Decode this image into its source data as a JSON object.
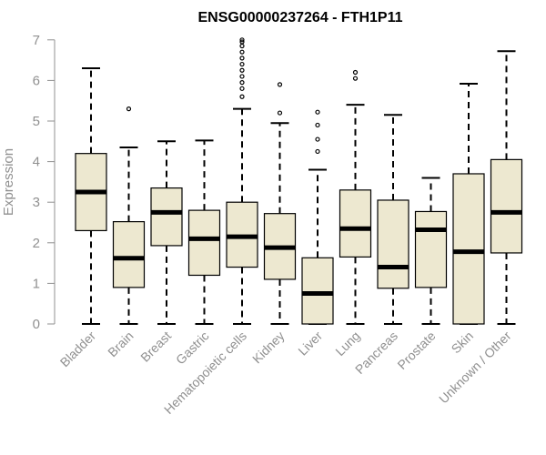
{
  "chart_data": {
    "type": "box",
    "title": "ENSG00000237264 - FTH1P11",
    "ylabel": "Expression",
    "xlabel": "",
    "ylim": [
      0,
      7
    ],
    "yticks": [
      0,
      1,
      2,
      3,
      4,
      5,
      6,
      7
    ],
    "grid": false,
    "legend": "none",
    "box_fill": "#ede8d0",
    "categories": [
      "Bladder",
      "Brain",
      "Breast",
      "Gastric",
      "Hematopoietic cells",
      "Kidney",
      "Liver",
      "Lung",
      "Pancreas",
      "Prostate",
      "Skin",
      "Unknown / Other"
    ],
    "boxes": [
      {
        "min": 0,
        "q1": 2.3,
        "median": 3.25,
        "q3": 4.2,
        "max": 6.3,
        "outliers": []
      },
      {
        "min": 0,
        "q1": 0.9,
        "median": 1.62,
        "q3": 2.52,
        "max": 4.35,
        "outliers": [
          5.3
        ]
      },
      {
        "min": 0,
        "q1": 1.93,
        "median": 2.75,
        "q3": 3.35,
        "max": 4.5,
        "outliers": []
      },
      {
        "min": 0,
        "q1": 1.2,
        "median": 2.1,
        "q3": 2.8,
        "max": 4.52,
        "outliers": []
      },
      {
        "min": 0,
        "q1": 1.4,
        "median": 2.15,
        "q3": 3.0,
        "max": 5.3,
        "outliers": [
          5.6,
          5.8,
          5.95,
          6.1,
          6.25,
          6.4,
          6.55,
          6.7,
          6.85,
          6.95,
          7.0
        ]
      },
      {
        "min": 0,
        "q1": 1.1,
        "median": 1.88,
        "q3": 2.72,
        "max": 4.95,
        "outliers": [
          5.2,
          5.9
        ]
      },
      {
        "min": 0,
        "q1": 0,
        "median": 0.75,
        "q3": 1.63,
        "max": 3.8,
        "outliers": [
          4.25,
          4.55,
          4.9,
          5.22
        ]
      },
      {
        "min": 0,
        "q1": 1.65,
        "median": 2.35,
        "q3": 3.3,
        "max": 5.4,
        "outliers": [
          6.05,
          6.2
        ]
      },
      {
        "min": 0,
        "q1": 0.88,
        "median": 1.4,
        "q3": 3.05,
        "max": 5.15,
        "outliers": []
      },
      {
        "min": 0,
        "q1": 0.9,
        "median": 2.32,
        "q3": 2.77,
        "max": 3.6,
        "outliers": []
      },
      {
        "min": 0,
        "q1": 0,
        "median": 1.78,
        "q3": 3.7,
        "max": 5.92,
        "outliers": []
      },
      {
        "min": 0,
        "q1": 1.75,
        "median": 2.75,
        "q3": 4.05,
        "max": 6.72,
        "outliers": []
      }
    ]
  }
}
